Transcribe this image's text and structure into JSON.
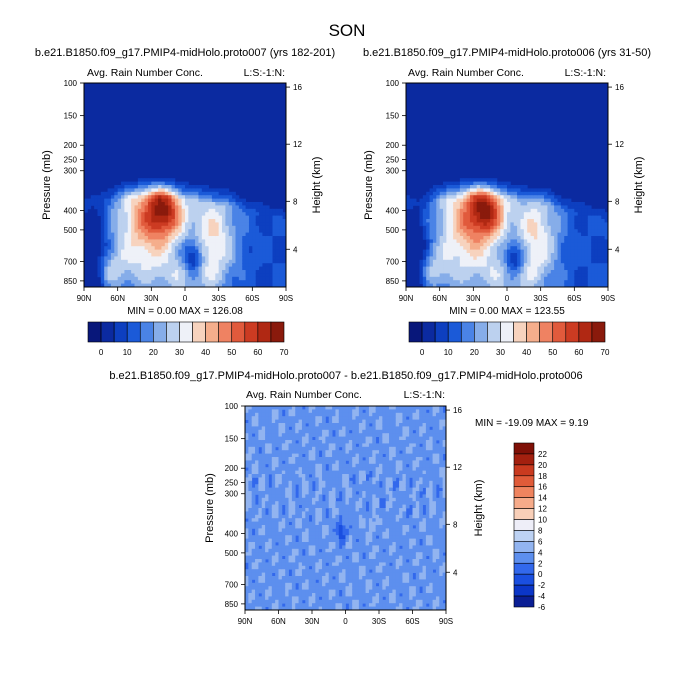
{
  "figure_title": "SON",
  "palettes": {
    "abs": [
      "#08177a",
      "#0b2aa0",
      "#0d3fc0",
      "#1b5ad8",
      "#4a83e6",
      "#86ade9",
      "#bcd1ef",
      "#eef1f8",
      "#f7d3be",
      "#f5ae8c",
      "#ef8262",
      "#e15a3c",
      "#cc3b22",
      "#b02813",
      "#8a1a0c"
    ],
    "diff": [
      "#0a1e94",
      "#0b36c8",
      "#1a4fe0",
      "#3268ec",
      "#5d8fee",
      "#92b4f0",
      "#bdd2f3",
      "#eeeef8",
      "#f8cfb8",
      "#f6ab8a",
      "#ef845f",
      "#e05b39",
      "#c93a1f",
      "#a3200f",
      "#7f1007"
    ]
  },
  "chart_data": [
    {
      "type": "contour",
      "title": "b.e21.B1850.f09_g17.PMIP4-midHolo.proto007 (yrs 182-201)",
      "left_label": "Avg. Rain Number Conc.",
      "right_label": "L:S:-1:N:",
      "ylabel": "Pressure (mb)",
      "ylabel_right": "Height (km)",
      "y_ticks": [
        "100",
        "150",
        "200",
        "250",
        "300",
        "400",
        "500",
        "700",
        "850"
      ],
      "y_ticks_right": [
        "16",
        "12",
        "8",
        "4"
      ],
      "x_ticks": [
        "90N",
        "60N",
        "30N",
        "0",
        "30S",
        "60S",
        "90S"
      ],
      "stats": "MIN =   0.00  MAX = 126.08",
      "colorbar_labels": [
        "0",
        "10",
        "20",
        "30",
        "40",
        "50",
        "60",
        "70"
      ]
    },
    {
      "type": "contour",
      "title": "b.e21.B1850.f09_g17.PMIP4-midHolo.proto006 (yrs 31-50)",
      "left_label": "Avg. Rain Number Conc.",
      "right_label": "L:S:-1:N:",
      "ylabel": "Pressure (mb)",
      "ylabel_right": "Height (km)",
      "y_ticks": [
        "100",
        "150",
        "200",
        "250",
        "300",
        "400",
        "500",
        "700",
        "850"
      ],
      "y_ticks_right": [
        "16",
        "12",
        "8",
        "4"
      ],
      "x_ticks": [
        "90N",
        "60N",
        "30N",
        "0",
        "30S",
        "60S",
        "90S"
      ],
      "stats": "MIN =   0.00  MAX = 123.55",
      "colorbar_labels": [
        "0",
        "10",
        "20",
        "30",
        "40",
        "50",
        "60",
        "70"
      ]
    },
    {
      "type": "contour",
      "title": "b.e21.B1850.f09_g17.PMIP4-midHolo.proto007 - b.e21.B1850.f09_g17.PMIP4-midHolo.proto006",
      "left_label": "Avg. Rain Number Conc.",
      "right_label": "L:S:-1:N:",
      "ylabel": "Pressure (mb)",
      "ylabel_right": "Height (km)",
      "y_ticks": [
        "100",
        "150",
        "200",
        "250",
        "300",
        "400",
        "500",
        "700",
        "850"
      ],
      "y_ticks_right": [
        "16",
        "12",
        "8",
        "4"
      ],
      "x_ticks": [
        "90N",
        "60N",
        "30N",
        "0",
        "30S",
        "60S",
        "90S"
      ],
      "stats": "MIN = -19.09  MAX =   9.19",
      "colorbar_labels": [
        "22",
        "20",
        "18",
        "16",
        "14",
        "12",
        "10",
        "8",
        "6",
        "4",
        "2",
        "0",
        "-2",
        "-4",
        "-6"
      ]
    }
  ]
}
